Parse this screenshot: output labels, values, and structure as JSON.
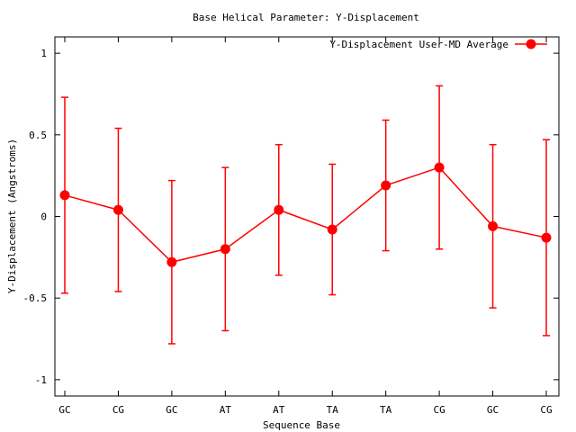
{
  "chart_data": {
    "type": "line",
    "title": "Base  Helical Parameter: Y-Displacement",
    "xlabel": "Sequence Base",
    "ylabel": "Y-Displacement (Angstroms)",
    "categories": [
      "GC",
      "CG",
      "GC",
      "AT",
      "AT",
      "TA",
      "TA",
      "CG",
      "GC",
      "CG"
    ],
    "ylim": [
      -1.1,
      1.1
    ],
    "yticks": [
      -1,
      -0.5,
      0,
      0.5,
      1
    ],
    "ytick_labels": [
      "-1",
      "-0.5",
      "0",
      "0.5",
      "1"
    ],
    "grid": false,
    "legend_position": "top-right",
    "series": [
      {
        "name": "Y-Displacement User-MD Average",
        "color": "#ff0000",
        "values": [
          0.13,
          0.04,
          -0.28,
          -0.2,
          0.04,
          -0.08,
          0.19,
          0.3,
          -0.06,
          -0.13
        ],
        "error_low": [
          -0.47,
          -0.46,
          -0.78,
          -0.7,
          -0.36,
          -0.48,
          -0.21,
          -0.2,
          -0.56,
          -0.73
        ],
        "error_high": [
          0.73,
          0.54,
          0.22,
          0.3,
          0.44,
          0.32,
          0.59,
          0.8,
          0.44,
          0.47
        ]
      }
    ]
  }
}
